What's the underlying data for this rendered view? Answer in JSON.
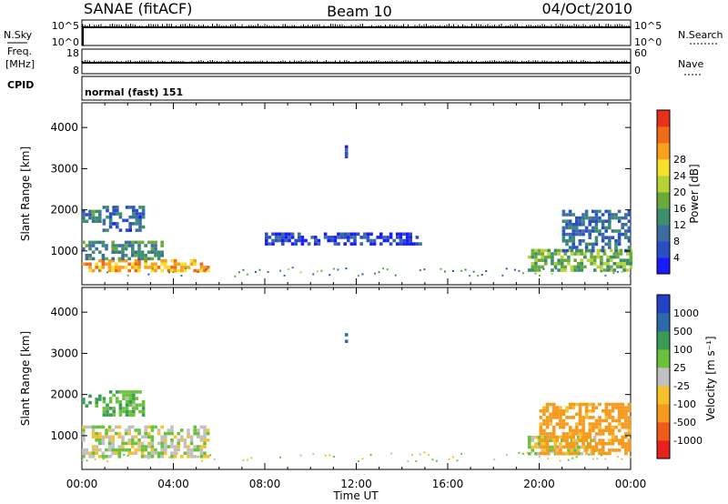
{
  "header": {
    "station": "SANAE (fitACF)",
    "beam": "Beam 10",
    "date": "04/Oct/2010"
  },
  "strip": {
    "nsky_label": "N.Sky",
    "nsky_ticks": [
      "10^5",
      "10^0"
    ],
    "nsearch_label": "N.Search",
    "nsearch_ticks": [
      "10^5",
      "10^0"
    ],
    "freq_label_line1": "Freq.",
    "freq_label_line2": "[MHz]",
    "freq_ticks": [
      "18",
      "8"
    ],
    "nave_label": "Nave",
    "nave_ticks": [
      "60",
      "0"
    ],
    "cpid_label": "CPID",
    "cpid_text": "normal (fast) 151"
  },
  "colors": {
    "power": [
      "#1a1aff",
      "#2a4fc4",
      "#3d6d9e",
      "#3b8f6c",
      "#6aaa3b",
      "#b7d234",
      "#f6e22b",
      "#f7a11c",
      "#f06a1a",
      "#e8311d"
    ],
    "velocity": [
      "#e8201f",
      "#f05a1a",
      "#f59a1c",
      "#f6c12b",
      "#c0c0c0",
      "#6ac23c",
      "#3b9a55",
      "#2f6aa8",
      "#2243c8"
    ]
  },
  "chart_data": [
    {
      "type": "heatmap",
      "name": "power-panel",
      "ylabel": "Slant Range [km]",
      "xlim_hours": [
        0,
        24
      ],
      "ylim_km": [
        180,
        4600
      ],
      "yticks": [
        "1000",
        "2000",
        "3000",
        "4000"
      ],
      "colorbar_label": "Power [dB]",
      "colorbar_ticks": [
        "4",
        "8",
        "12",
        "16",
        "20",
        "24",
        "28"
      ],
      "regions": [
        {
          "t0": 0.0,
          "t1": 5.5,
          "r0": 550,
          "r1": 800,
          "dB": 22
        },
        {
          "t0": 0.0,
          "t1": 3.5,
          "r0": 800,
          "r1": 1250,
          "dB": 10
        },
        {
          "t0": 0.0,
          "t1": 0.8,
          "r0": 1700,
          "r1": 2000,
          "dB": 9
        },
        {
          "t0": 0.9,
          "t1": 2.7,
          "r0": 1500,
          "r1": 2100,
          "dB": 6
        },
        {
          "t0": 19.5,
          "t1": 24.0,
          "r0": 550,
          "r1": 1050,
          "dB": 14
        },
        {
          "t0": 21.0,
          "t1": 24.0,
          "r0": 1000,
          "r1": 2000,
          "dB": 7
        },
        {
          "t0": 8.0,
          "t1": 14.8,
          "r0": 1200,
          "r1": 1450,
          "dB": 4
        },
        {
          "t0": 11.5,
          "t1": 11.6,
          "r0": 3300,
          "r1": 3650,
          "dB": 5
        }
      ]
    },
    {
      "type": "heatmap",
      "name": "velocity-panel",
      "ylabel": "Slant Range [km]",
      "xlim_hours": [
        0,
        24
      ],
      "ylim_km": [
        180,
        4600
      ],
      "yticks": [
        "1000",
        "2000",
        "3000",
        "4000"
      ],
      "xlabel": "Time UT",
      "xticks": [
        "00:00",
        "04:00",
        "08:00",
        "12:00",
        "16:00",
        "20:00",
        "00:00"
      ],
      "colorbar_label": "Velocity [m s⁻¹]",
      "colorbar_ticks": [
        "-1000",
        "-500",
        "-100",
        "-25",
        "25",
        "100",
        "500",
        "1000"
      ],
      "regions": [
        {
          "t0": 0.0,
          "t1": 5.5,
          "r0": 500,
          "r1": 1250,
          "vel": 0
        },
        {
          "t0": 0.0,
          "t1": 0.8,
          "r0": 1700,
          "r1": 2000,
          "vel": 150
        },
        {
          "t0": 0.9,
          "t1": 2.7,
          "r0": 1500,
          "r1": 2100,
          "vel": 80
        },
        {
          "t0": 19.5,
          "t1": 22.5,
          "r0": 550,
          "r1": 1000,
          "vel": 10
        },
        {
          "t0": 20.0,
          "t1": 24.0,
          "r0": 600,
          "r1": 1800,
          "vel": -150
        },
        {
          "t0": 11.5,
          "t1": 11.6,
          "r0": 3300,
          "r1": 3650,
          "vel": 800
        }
      ]
    }
  ]
}
